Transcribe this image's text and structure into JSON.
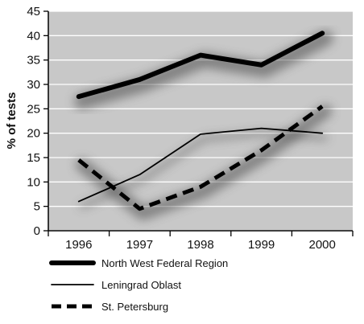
{
  "chart_data": {
    "type": "line",
    "title": "",
    "xlabel": "",
    "ylabel": "% of tests",
    "x": [
      "1996",
      "1997",
      "1998",
      "1999",
      "2000"
    ],
    "ylim": [
      0,
      45
    ],
    "yticks": [
      0,
      5,
      10,
      15,
      20,
      25,
      30,
      35,
      40,
      45
    ],
    "grid": true,
    "legend_position": "bottom",
    "colors": {
      "plot_background": "#c8c8c8",
      "gridline": "#ffffff",
      "series": "#000000"
    },
    "series": [
      {
        "name": "North West Federal Region",
        "style": "thick-solid",
        "values": [
          27.5,
          31,
          36,
          34,
          40.5
        ]
      },
      {
        "name": "Leningrad Oblast",
        "style": "thin-solid",
        "values": [
          6,
          11.5,
          19.8,
          21,
          20
        ]
      },
      {
        "name": "St. Petersburg",
        "style": "thick-dashed",
        "values": [
          14.5,
          4.5,
          9,
          16.5,
          25.5
        ]
      }
    ]
  }
}
